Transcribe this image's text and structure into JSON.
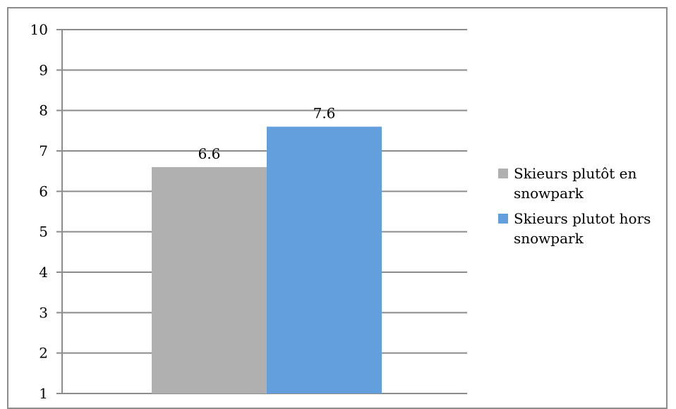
{
  "chart_data": {
    "type": "bar",
    "categories": [
      ""
    ],
    "series": [
      {
        "name": "Skieurs plutôt en snowpark",
        "values": [
          6.6
        ],
        "color": "#b0b0b0"
      },
      {
        "name": "Skieurs plutot hors snowpark",
        "values": [
          7.6
        ],
        "color": "#629fdc"
      }
    ],
    "ylim": [
      1,
      10
    ],
    "yticks": [
      "1",
      "2",
      "3",
      "4",
      "5",
      "6",
      "7",
      "8",
      "9",
      "10"
    ],
    "grid": true,
    "legend_position": "right",
    "data_labels": [
      "6.6",
      "7.6"
    ]
  }
}
